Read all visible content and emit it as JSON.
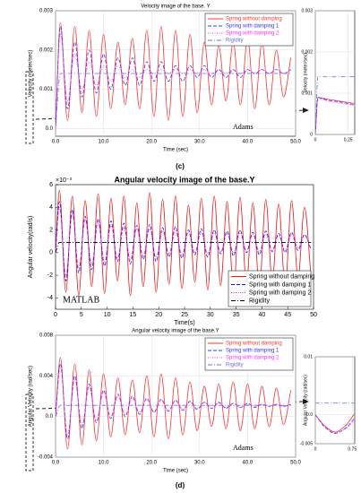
{
  "chart_data": [
    {
      "type": "line",
      "title": "Velocity image of the base. Y",
      "xlabel": "Time (sec)",
      "ylabel": "Velocity (meter/sec)",
      "annotation": "Adams",
      "grid": true,
      "legend": "upper right",
      "x": [
        0,
        1,
        2.5,
        4,
        5.5,
        7,
        8.5,
        10,
        11.5,
        13,
        14.5,
        16,
        17.5,
        19,
        20.5,
        22,
        23.5,
        25,
        26.5,
        28,
        29.5,
        31,
        32.5,
        34,
        35.5,
        37,
        38.5,
        40,
        41.5,
        43,
        44.5,
        46,
        47.5,
        49
      ],
      "xlim": [
        0,
        50
      ],
      "ylim": [
        -0.0002,
        0.003
      ],
      "xticks": [
        {
          "value": 0,
          "label": "0.0"
        },
        {
          "value": 10,
          "label": "10.0"
        },
        {
          "value": 20,
          "label": "20.0"
        },
        {
          "value": 30,
          "label": "30.0"
        },
        {
          "value": 40,
          "label": "40.0"
        },
        {
          "value": 50,
          "label": "50.0"
        }
      ],
      "yticks": [
        {
          "value": 0,
          "label": "0.0"
        },
        0.001,
        0.002,
        0.003
      ],
      "series": [
        {
          "name": "Spring without damping",
          "color": "#ff3333",
          "dash": "solid",
          "values": [
            0,
            0.0027,
            0.0002,
            0.0026,
            0.0004,
            0.0025,
            0.0003,
            0.0024,
            0.0005,
            0.0022,
            0.0006,
            0.0023,
            0.0005,
            0.0025,
            0.0003,
            0.0026,
            0.0002,
            0.0025,
            0.0003,
            0.0024,
            0.0004,
            0.0022,
            0.0006,
            0.0021,
            0.0007,
            0.0022,
            0.0006,
            0.0023,
            0.0005,
            0.0022,
            0.0006,
            0.002,
            0.0008,
            0.0018
          ]
        },
        {
          "name": "Spring with damping 1",
          "color": "#3333ff",
          "dash": "dashed",
          "values": [
            0,
            0.0026,
            0.0005,
            0.0022,
            0.0008,
            0.002,
            0.0009,
            0.0019,
            0.001,
            0.0018,
            0.0011,
            0.0018,
            0.0011,
            0.0017,
            0.0012,
            0.0017,
            0.0012,
            0.0016,
            0.0012,
            0.0016,
            0.0013,
            0.0016,
            0.0013,
            0.0015,
            0.0013,
            0.0015,
            0.0013,
            0.0015,
            0.0014,
            0.0015,
            0.0014,
            0.0015,
            0.0014,
            0.0015
          ]
        },
        {
          "name": "Spring with damping 2",
          "color": "#ff33ff",
          "dash": "dotted",
          "values": [
            0,
            0.0024,
            0.0007,
            0.0019,
            0.001,
            0.0017,
            0.0011,
            0.0016,
            0.0012,
            0.0016,
            0.0013,
            0.0015,
            0.0013,
            0.0015,
            0.0014,
            0.0015,
            0.0014,
            0.0015,
            0.0014,
            0.0015,
            0.0014,
            0.0015,
            0.0014,
            0.0015,
            0.0014,
            0.0015,
            0.0014,
            0.0015,
            0.0014,
            0.0015,
            0.0014,
            0.0015,
            0.0014,
            0.0015
          ]
        },
        {
          "name": "Rigidity",
          "color": "#7070d0",
          "dash": "dashdot",
          "values": [
            0,
            0.0014,
            0.0014,
            0.0014,
            0.0014,
            0.0014,
            0.0014,
            0.0014,
            0.0014,
            0.0014,
            0.0014,
            0.0014,
            0.0014,
            0.0014,
            0.0014,
            0.0014,
            0.0014,
            0.0014,
            0.0014,
            0.0014,
            0.0014,
            0.0014,
            0.0014,
            0.0014,
            0.0014,
            0.0014,
            0.0014,
            0.0014,
            0.0014,
            0.0014,
            0.0014,
            0.0014,
            0.0014,
            0.0014
          ]
        }
      ]
    },
    {
      "type": "line",
      "ylabel": "Velocity (meter/sec)",
      "grid": true,
      "x": [
        0,
        0.02,
        0.05,
        0.1,
        0.2,
        0.3
      ],
      "xlim": [
        0,
        0.3
      ],
      "ylim": [
        0,
        0.003
      ],
      "xticks": [
        0,
        0.25
      ],
      "yticks": [
        0,
        0.001,
        0.002,
        0.003
      ],
      "series": [
        {
          "color": "#ff3333",
          "dash": "solid",
          "values": [
            0,
            0.0009,
            0.00088,
            0.00085,
            0.0008,
            0.00075
          ]
        },
        {
          "color": "#3333ff",
          "dash": "dashed",
          "values": [
            0,
            0.0009,
            0.00087,
            0.00083,
            0.00078,
            0.00072
          ]
        },
        {
          "color": "#ff33ff",
          "dash": "dotted",
          "values": [
            0,
            0.00088,
            0.00085,
            0.0008,
            0.00075,
            0.0007
          ]
        },
        {
          "color": "#7070d0",
          "dash": "dashdot",
          "values": [
            0,
            0.0014,
            0.0014,
            0.0014,
            0.0014,
            0.0014
          ]
        }
      ]
    },
    {
      "type": "line",
      "title": "Angular velocity image of the base.Y",
      "xlabel": "Time(s)",
      "ylabel": "Angular velocity(rad/s)",
      "y_multiplier": "×10⁻³",
      "annotation": "MATLAB",
      "grid": false,
      "legend": "lower right",
      "x": [
        0,
        0.75,
        2,
        3.25,
        4.5,
        5.75,
        7,
        8.25,
        9.5,
        10.75,
        12,
        13.25,
        14.5,
        15.75,
        17,
        18.25,
        19.5,
        20.75,
        22,
        23.25,
        24.5,
        25.75,
        27,
        28.25,
        29.5,
        30.75,
        32,
        33.25,
        34.5,
        35.75,
        37,
        38.25,
        39.5,
        40.75,
        42,
        43.25,
        44.5,
        45.75,
        47,
        48.25,
        49.5
      ],
      "xlim": [
        0,
        50
      ],
      "ylim": [
        -5,
        6
      ],
      "xticks": [
        0,
        5,
        10,
        15,
        20,
        25,
        30,
        35,
        40,
        45,
        50
      ],
      "yticks": [
        -4,
        -2,
        0,
        2,
        4,
        6
      ],
      "series": [
        {
          "name": "Spring without damping",
          "color": "#ee1111",
          "dash": "solid",
          "values": [
            0,
            5.5,
            -3.5,
            5.0,
            -3.8,
            4.6,
            -3.0,
            5.2,
            -3.6,
            4.8,
            -2.5,
            5.0,
            -3.8,
            4.4,
            -3.0,
            5.3,
            -3.5,
            4.7,
            -2.8,
            5.0,
            -3.2,
            4.2,
            -2.6,
            4.8,
            -3.3,
            5.0,
            -2.9,
            4.5,
            -3.4,
            4.9,
            -2.7,
            4.4,
            -3.1,
            4.7,
            -2.5,
            4.3,
            -3.0,
            4.6,
            -2.2,
            4.0,
            -2.0
          ]
        },
        {
          "name": "Spring with damping 1",
          "color": "#1111ee",
          "dash": "dashed",
          "values": [
            0,
            4.5,
            -2.5,
            3.8,
            -1.8,
            3.2,
            -1.5,
            3.0,
            -1.2,
            2.8,
            -0.8,
            2.6,
            -1.0,
            2.4,
            -0.6,
            2.5,
            -0.8,
            2.2,
            -0.4,
            2.3,
            -0.5,
            2.0,
            -0.2,
            2.1,
            -0.4,
            2.0,
            -0.1,
            1.9,
            -0.3,
            2.0,
            0.0,
            1.8,
            -0.2,
            1.9,
            0.1,
            1.7,
            0.0,
            1.8,
            0.2,
            1.6,
            0.3
          ]
        },
        {
          "name": "Spring with damping 2",
          "color": "#ee11ee",
          "dash": "dotted",
          "values": [
            0,
            4.0,
            -2.0,
            3.4,
            -1.4,
            2.9,
            -1.0,
            2.6,
            -0.8,
            2.4,
            -0.5,
            2.2,
            -0.6,
            2.1,
            -0.3,
            2.1,
            -0.4,
            1.9,
            -0.1,
            1.9,
            -0.2,
            1.8,
            0.0,
            1.8,
            -0.1,
            1.7,
            0.1,
            1.7,
            0.0,
            1.7,
            0.2,
            1.6,
            0.1,
            1.6,
            0.3,
            1.5,
            0.2,
            1.6,
            0.4,
            1.5,
            0.4
          ]
        },
        {
          "name": "Rigidity",
          "color": "#000000",
          "dash": "dashdot",
          "values": [
            0,
            0.9,
            0.9,
            0.9,
            0.9,
            0.9,
            0.9,
            0.9,
            0.9,
            0.9,
            0.9,
            0.9,
            0.9,
            0.9,
            0.9,
            0.9,
            0.9,
            0.9,
            0.9,
            0.9,
            0.9,
            0.9,
            0.9,
            0.9,
            0.9,
            0.9,
            0.9,
            0.9,
            0.9,
            0.9,
            0.9,
            0.9,
            0.9,
            0.9,
            0.9,
            0.9,
            0.9,
            0.9,
            0.9,
            0.9,
            0.9
          ]
        }
      ]
    },
    {
      "type": "line",
      "title": "Angular velocity image of the base.Y",
      "xlabel": "Time (sec)",
      "ylabel": "Angular Velocity (rad/sec)",
      "annotation": "Adams",
      "grid": true,
      "legend": "upper right",
      "x": [
        0,
        1,
        2.5,
        4,
        5.5,
        7,
        8.5,
        10,
        11.5,
        13,
        14.5,
        16,
        17.5,
        19,
        20.5,
        22,
        23.5,
        25,
        26.5,
        28,
        29.5,
        31,
        32.5,
        34,
        35.5,
        37,
        38.5,
        40,
        41.5,
        43,
        44.5,
        46,
        47.5,
        49
      ],
      "xlim": [
        0,
        50
      ],
      "ylim": [
        -0.004,
        0.008
      ],
      "xticks": [
        {
          "value": 0,
          "label": "0.0"
        },
        {
          "value": 10,
          "label": "10.0"
        },
        {
          "value": 20,
          "label": "20.0"
        },
        {
          "value": 30,
          "label": "30.0"
        },
        {
          "value": 40,
          "label": "40.0"
        },
        {
          "value": 50,
          "label": "50.0"
        }
      ],
      "yticks": [
        -0.004,
        {
          "value": 0,
          "label": "0.0"
        },
        0.004,
        0.008
      ],
      "series": [
        {
          "name": "Spring without damping",
          "color": "#ff3333",
          "dash": "solid",
          "values": [
            0,
            0.0058,
            -0.0032,
            0.0052,
            -0.0028,
            0.0046,
            -0.0024,
            0.0042,
            -0.002,
            0.0038,
            -0.0018,
            0.0036,
            -0.0016,
            0.004,
            -0.002,
            0.0042,
            -0.0022,
            0.0038,
            -0.0018,
            0.0034,
            -0.0014,
            0.003,
            -0.001,
            0.0032,
            -0.0012,
            0.0034,
            -0.0014,
            0.0032,
            -0.0012,
            0.003,
            -0.001,
            0.0028,
            -0.0008,
            0.0026
          ]
        },
        {
          "name": "Spring with damping 1",
          "color": "#3333ff",
          "dash": "dashed",
          "values": [
            0,
            0.0052,
            -0.0022,
            0.004,
            -0.0012,
            0.0032,
            -0.0006,
            0.0026,
            -0.0002,
            0.0022,
            0.0,
            0.002,
            0.0002,
            0.0018,
            0.0004,
            0.0017,
            0.0005,
            0.0016,
            0.0006,
            0.0015,
            0.0007,
            0.0014,
            0.0008,
            0.0014,
            0.0008,
            0.0013,
            0.0009,
            0.0013,
            0.0009,
            0.0012,
            0.001,
            0.0012,
            0.001,
            0.0012
          ]
        },
        {
          "name": "Spring with damping 2",
          "color": "#ff33ff",
          "dash": "dotted",
          "values": [
            0,
            0.0048,
            -0.0018,
            0.0036,
            -0.0009,
            0.0029,
            -0.0004,
            0.0024,
            0.0,
            0.002,
            0.0002,
            0.0018,
            0.0004,
            0.0017,
            0.0005,
            0.0016,
            0.0006,
            0.0015,
            0.0007,
            0.0014,
            0.0008,
            0.0014,
            0.0008,
            0.0013,
            0.0009,
            0.0013,
            0.0009,
            0.0012,
            0.001,
            0.0012,
            0.001,
            0.0012,
            0.001,
            0.0011
          ]
        },
        {
          "name": "Rigidity",
          "color": "#7070d0",
          "dash": "dashdot",
          "values": [
            0,
            0.0011,
            0.0011,
            0.0011,
            0.0011,
            0.0011,
            0.0011,
            0.0011,
            0.0011,
            0.0011,
            0.0011,
            0.0011,
            0.0011,
            0.0011,
            0.0011,
            0.0011,
            0.0011,
            0.0011,
            0.0011,
            0.0011,
            0.0011,
            0.0011,
            0.0011,
            0.0011,
            0.0011,
            0.0011,
            0.0011,
            0.0011,
            0.0011,
            0.0011,
            0.0011,
            0.0011,
            0.0011,
            0.0011
          ]
        }
      ]
    },
    {
      "type": "line",
      "ylabel": "Angular Velocity (rad/sec)",
      "grid": true,
      "x": [
        0,
        0.2,
        0.4,
        0.6,
        0.8
      ],
      "xlim": [
        0,
        0.8
      ],
      "ylim": [
        -0.005,
        0.01
      ],
      "xticks": [
        0,
        0.75
      ],
      "yticks": [
        -0.005,
        {
          "value": 0,
          "label": "0.0"
        },
        0.01
      ],
      "series": [
        {
          "color": "#ff3333",
          "dash": "solid",
          "values": [
            0,
            -0.002,
            -0.003,
            -0.002,
            0.0002
          ]
        },
        {
          "color": "#3333ff",
          "dash": "dashed",
          "values": [
            0,
            -0.0022,
            -0.0032,
            -0.0024,
            -0.0006
          ]
        },
        {
          "color": "#ff33ff",
          "dash": "dotted",
          "values": [
            0,
            -0.0021,
            -0.0031,
            -0.0025,
            -0.001
          ]
        },
        {
          "color": "#7070d0",
          "dash": "dashdot",
          "values": [
            0.002,
            0.002,
            0.002,
            0.002,
            0.002
          ]
        }
      ]
    }
  ],
  "panel_labels": [
    "(c)",
    "(d)"
  ]
}
